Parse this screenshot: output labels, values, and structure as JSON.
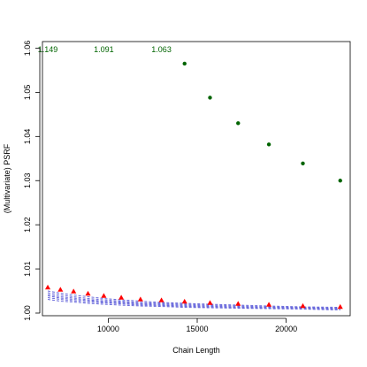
{
  "chart_data": {
    "type": "scatter",
    "title": "",
    "xlabel": "Chain Length",
    "ylabel": "(Multivariate) PSRF",
    "xlim": [
      6300,
      23600
    ],
    "ylim": [
      0.9994,
      1.0615
    ],
    "xticks": [
      10000,
      15000,
      20000
    ],
    "xtick_labels": [
      "10000",
      "15000",
      "20000"
    ],
    "yticks": [
      1.0,
      1.01,
      1.02,
      1.03,
      1.04,
      1.05,
      1.06
    ],
    "ytick_labels": [
      "1.00",
      "1.01",
      "1.02",
      "1.03",
      "1.04",
      "1.05",
      "1.06"
    ],
    "grid": false,
    "legend": "none",
    "x": [
      6600,
      7310,
      8050,
      8860,
      9750,
      10730,
      11810,
      12990,
      14290,
      15720,
      17300,
      19030,
      20940,
      23040
    ],
    "series": [
      {
        "marker": "dot",
        "color": "#006400",
        "points": [
          {
            "x": 14290,
            "y": 1.0565
          },
          {
            "x": 15720,
            "y": 1.0488
          },
          {
            "x": 17300,
            "y": 1.043
          },
          {
            "x": 19030,
            "y": 1.0382
          },
          {
            "x": 20940,
            "y": 1.0339
          },
          {
            "x": 23040,
            "y": 1.03
          }
        ]
      },
      {
        "marker": "triangle",
        "color": "#ff0000",
        "values": [
          1.0058,
          1.0053,
          1.0049,
          1.0044,
          1.0039,
          1.0035,
          1.0031,
          1.0029,
          1.0026,
          1.0023,
          1.0021,
          1.0019,
          1.0016,
          1.0014
        ]
      },
      {
        "line_style": "dashed",
        "color": "#6b6bdc",
        "values": [
          1.005,
          1.0045,
          1.0041,
          1.0037,
          1.0033,
          1.003,
          1.0027,
          1.0024,
          1.0022,
          1.002,
          1.0018,
          1.0016,
          1.0014,
          1.0013
        ]
      },
      {
        "line_style": "dashed",
        "color": "#6b6bdc",
        "values": [
          1.0046,
          1.0041,
          1.0037,
          1.0033,
          1.003,
          1.0027,
          1.0024,
          1.0022,
          1.002,
          1.0018,
          1.0016,
          1.0014,
          1.0013,
          1.0011
        ]
      },
      {
        "line_style": "dashed",
        "color": "#6b6bdc",
        "values": [
          1.0042,
          1.0037,
          1.0034,
          1.003,
          1.0027,
          1.0025,
          1.0022,
          1.002,
          1.0018,
          1.0016,
          1.0014,
          1.0013,
          1.0012,
          1.001
        ]
      },
      {
        "line_style": "dashed",
        "color": "#6b6bdc",
        "values": [
          1.0039,
          1.0034,
          1.0031,
          1.0028,
          1.0025,
          1.0023,
          1.002,
          1.0018,
          1.0016,
          1.0015,
          1.0013,
          1.0012,
          1.0011,
          1.0009
        ]
      },
      {
        "line_style": "dashed",
        "color": "#6b6bdc",
        "values": [
          1.0035,
          1.0031,
          1.0028,
          1.0025,
          1.0023,
          1.0021,
          1.0018,
          1.0017,
          1.0015,
          1.0013,
          1.0012,
          1.0011,
          1.001,
          1.0008
        ]
      },
      {
        "line_style": "dashed",
        "color": "#6b6bdc",
        "values": [
          1.0031,
          1.0027,
          1.0025,
          1.0022,
          1.002,
          1.0018,
          1.0016,
          1.0015,
          1.0013,
          1.0012,
          1.0011,
          1.001,
          1.0009,
          1.0007
        ]
      }
    ],
    "annotations": [
      {
        "text": "1.149",
        "x": 6600,
        "y": 1.0597,
        "color": "#006400"
      },
      {
        "text": "1.091",
        "x": 9750,
        "y": 1.0597,
        "color": "#006400"
      },
      {
        "text": "1.063",
        "x": 12990,
        "y": 1.0597,
        "color": "#006400"
      }
    ]
  }
}
